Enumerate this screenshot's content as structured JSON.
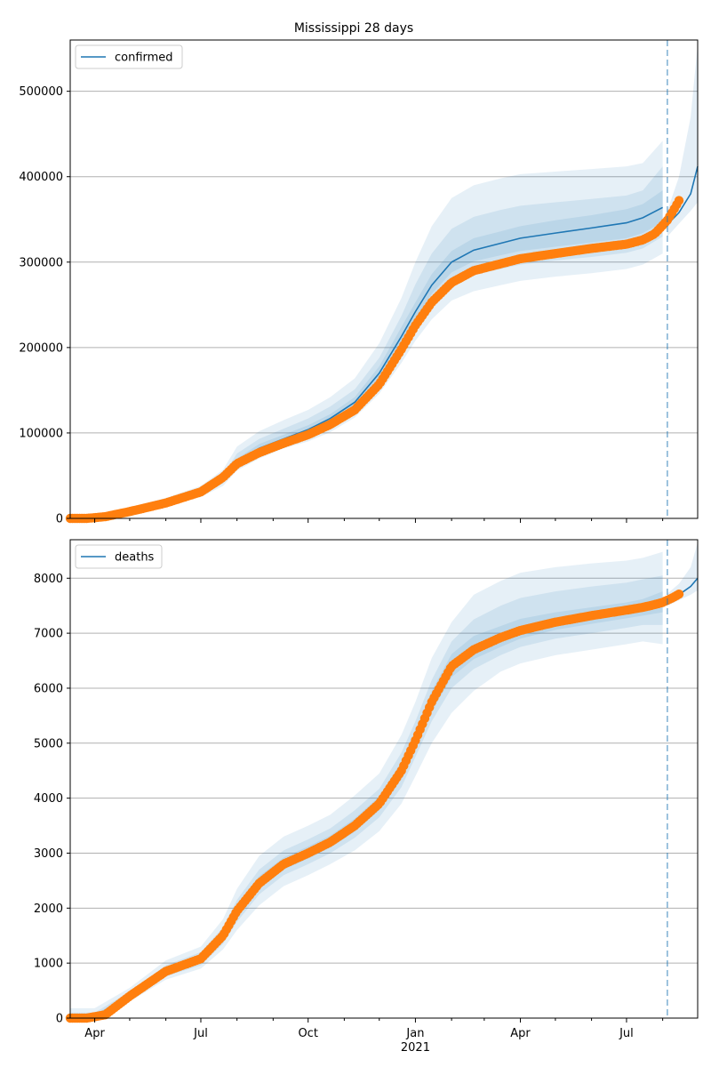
{
  "title": "Mississippi 28 days",
  "chart_data": [
    {
      "type": "line",
      "title": "Mississippi 28 days",
      "legend": {
        "entry": "confirmed",
        "placement": "top-left"
      },
      "xlabel": "",
      "ylabel": "",
      "grid": "y",
      "x_ticks": [
        "Apr",
        "Jul",
        "Oct",
        "Jan",
        "Apr",
        "Jul"
      ],
      "x_tick_year": "2021",
      "x_range": [
        "2020-03-11",
        "2021-08-31"
      ],
      "ylim": [
        0,
        560000
      ],
      "y_ticks": [
        "0",
        "100000",
        "200000",
        "300000",
        "400000",
        "500000"
      ],
      "y_tick_values": [
        0,
        100000,
        200000,
        300000,
        400000,
        500000
      ],
      "vline_date": "2021-08-05",
      "colors": {
        "line": "#1f77b4",
        "observed": "#ff7f0e",
        "band": "#1f77b4"
      },
      "model": {
        "name": "confirmed",
        "x": [
          "2020-03-11",
          "2020-04-01",
          "2020-05-01",
          "2020-06-01",
          "2020-07-01",
          "2020-07-20",
          "2020-08-01",
          "2020-08-20",
          "2020-09-10",
          "2020-10-01",
          "2020-10-20",
          "2020-11-10",
          "2020-12-01",
          "2020-12-20",
          "2021-01-01",
          "2021-01-15",
          "2021-02-01",
          "2021-02-20",
          "2021-03-15",
          "2021-04-01",
          "2021-05-01",
          "2021-06-01",
          "2021-07-01",
          "2021-07-15",
          "2021-08-01"
        ],
        "y": [
          0,
          2000,
          9000,
          18000,
          30000,
          45000,
          66000,
          82000,
          93000,
          104000,
          117000,
          136000,
          170000,
          213000,
          242000,
          273000,
          300000,
          314000,
          322000,
          328000,
          334000,
          340000,
          346000,
          352000,
          364000
        ]
      },
      "bands": [
        {
          "lower": [
            0,
            1000,
            6000,
            14000,
            25000,
            38000,
            56000,
            70000,
            82000,
            90000,
            101000,
            118000,
            146000,
            182000,
            208000,
            233000,
            255000,
            266000,
            273000,
            278000,
            283000,
            287000,
            292000,
            297000,
            310000
          ],
          "upper": [
            0,
            4000,
            13000,
            24000,
            38000,
            57000,
            84000,
            102000,
            115000,
            127000,
            142000,
            164000,
            205000,
            258000,
            300000,
            342000,
            375000,
            390000,
            398000,
            403000,
            406000,
            409000,
            412000,
            416000,
            442000
          ]
        },
        {
          "lower": [
            0,
            1500,
            7500,
            16000,
            28000,
            41000,
            60000,
            75000,
            86000,
            96000,
            108000,
            126000,
            156000,
            196000,
            224000,
            252000,
            274000,
            285000,
            292000,
            297000,
            302000,
            306000,
            311000,
            316000,
            330000
          ],
          "upper": [
            0,
            3000,
            11000,
            21000,
            34000,
            51000,
            76000,
            93000,
            105000,
            117000,
            131000,
            151000,
            188000,
            237000,
            274000,
            310000,
            339000,
            353000,
            361000,
            366000,
            370000,
            374000,
            378000,
            384000,
            412000
          ]
        },
        {
          "lower": [
            0,
            1800,
            8500,
            17000,
            29000,
            43000,
            63000,
            79000,
            90000,
            100000,
            113000,
            131000,
            164000,
            205000,
            233000,
            263000,
            288000,
            301000,
            308000,
            313000,
            318000,
            323000,
            328000,
            334000,
            347000
          ],
          "upper": [
            0,
            2500,
            10000,
            19500,
            32000,
            48000,
            70000,
            87000,
            98000,
            109000,
            122000,
            142000,
            178000,
            224000,
            253000,
            286000,
            313000,
            328000,
            336000,
            342000,
            349000,
            355000,
            362000,
            368000,
            384000
          ]
        }
      ],
      "forecast": {
        "x": [
          "2021-08-05",
          "2021-08-15",
          "2021-08-25",
          "2021-08-31"
        ],
        "y": [
          344000,
          358000,
          380000,
          412000
        ],
        "lower": [
          330000,
          345000,
          360000,
          370000
        ],
        "upper": [
          360000,
          400000,
          470000,
          555000
        ]
      },
      "observed": {
        "name": "observed",
        "x": [
          "2020-03-11",
          "2020-03-25",
          "2020-04-10",
          "2020-05-01",
          "2020-06-01",
          "2020-07-01",
          "2020-07-20",
          "2020-08-01",
          "2020-08-20",
          "2020-09-10",
          "2020-10-01",
          "2020-10-20",
          "2020-11-10",
          "2020-12-01",
          "2020-12-20",
          "2021-01-01",
          "2021-01-15",
          "2021-02-01",
          "2021-02-20",
          "2021-03-15",
          "2021-04-01",
          "2021-05-01",
          "2021-06-01",
          "2021-07-01",
          "2021-07-15",
          "2021-07-25",
          "2021-08-01",
          "2021-08-05",
          "2021-08-10",
          "2021-08-15"
        ],
        "y": [
          0,
          0,
          2000,
          8000,
          18000,
          31000,
          48000,
          64000,
          77000,
          88000,
          98000,
          110000,
          127000,
          157000,
          198000,
          226000,
          253000,
          276000,
          290000,
          298000,
          304000,
          310000,
          316000,
          321000,
          326000,
          333000,
          343000,
          349000,
          360000,
          372000
        ]
      }
    },
    {
      "type": "line",
      "title": "",
      "legend": {
        "entry": "deaths",
        "placement": "top-left"
      },
      "xlabel": "",
      "ylabel": "",
      "grid": "y",
      "x_ticks": [
        "Apr",
        "Jul",
        "Oct",
        "Jan",
        "Apr",
        "Jul"
      ],
      "x_tick_year": "2021",
      "x_range": [
        "2020-03-11",
        "2021-08-31"
      ],
      "ylim": [
        0,
        8700
      ],
      "y_ticks": [
        "0",
        "1000",
        "2000",
        "3000",
        "4000",
        "5000",
        "6000",
        "7000",
        "8000"
      ],
      "y_tick_values": [
        0,
        1000,
        2000,
        3000,
        4000,
        5000,
        6000,
        7000,
        8000
      ],
      "vline_date": "2021-08-05",
      "colors": {
        "line": "#1f77b4",
        "observed": "#ff7f0e",
        "band": "#1f77b4"
      },
      "model": {
        "name": "deaths",
        "x": [
          "2020-03-11",
          "2020-04-01",
          "2020-05-01",
          "2020-06-01",
          "2020-07-01",
          "2020-07-20",
          "2020-08-01",
          "2020-08-20",
          "2020-09-10",
          "2020-10-01",
          "2020-10-20",
          "2020-11-10",
          "2020-12-01",
          "2020-12-20",
          "2021-01-01",
          "2021-01-15",
          "2021-02-01",
          "2021-02-20",
          "2021-03-15",
          "2021-04-01",
          "2021-05-01",
          "2021-06-01",
          "2021-07-01",
          "2021-07-15",
          "2021-08-01"
        ],
        "y": [
          0,
          30,
          400,
          850,
          1080,
          1500,
          1950,
          2450,
          2800,
          3000,
          3200,
          3500,
          3900,
          4500,
          5050,
          5750,
          6400,
          6700,
          6900,
          7050,
          7200,
          7320,
          7420,
          7480,
          7580
        ]
      },
      "bands": [
        {
          "lower": [
            0,
            0,
            300,
            700,
            900,
            1250,
            1600,
            2050,
            2400,
            2600,
            2800,
            3050,
            3400,
            3900,
            4400,
            5000,
            5550,
            5950,
            6300,
            6450,
            6600,
            6700,
            6800,
            6850,
            6800
          ],
          "upper": [
            180,
            180,
            550,
            1050,
            1300,
            1800,
            2350,
            2950,
            3300,
            3500,
            3700,
            4050,
            4450,
            5150,
            5750,
            6550,
            7200,
            7700,
            7950,
            8100,
            8200,
            8270,
            8320,
            8370,
            8480
          ]
        },
        {
          "lower": [
            0,
            0,
            340,
            760,
            960,
            1350,
            1750,
            2250,
            2600,
            2800,
            3000,
            3280,
            3650,
            4200,
            4750,
            5400,
            6000,
            6350,
            6600,
            6750,
            6900,
            7000,
            7100,
            7150,
            7150
          ],
          "upper": [
            100,
            100,
            480,
            960,
            1200,
            1650,
            2150,
            2700,
            3050,
            3250,
            3450,
            3780,
            4170,
            4830,
            5400,
            6150,
            6850,
            7250,
            7500,
            7640,
            7760,
            7850,
            7920,
            7980,
            8050
          ]
        },
        {
          "lower": [
            0,
            10,
            370,
            810,
            1030,
            1430,
            1850,
            2350,
            2700,
            2900,
            3100,
            3390,
            3780,
            4350,
            4900,
            5580,
            6200,
            6530,
            6750,
            6900,
            7060,
            7170,
            7270,
            7320,
            7380
          ],
          "upper": [
            50,
            60,
            440,
            900,
            1130,
            1570,
            2050,
            2580,
            2920,
            3120,
            3320,
            3630,
            4030,
            4660,
            5220,
            5950,
            6620,
            6950,
            7130,
            7260,
            7380,
            7470,
            7560,
            7620,
            7760
          ]
        }
      ],
      "forecast": {
        "x": [
          "2021-08-05",
          "2021-08-15",
          "2021-08-25",
          "2021-08-31"
        ],
        "y": [
          7600,
          7700,
          7850,
          8000
        ],
        "lower": [
          7500,
          7600,
          7700,
          7780
        ],
        "upper": [
          7720,
          7900,
          8200,
          8650
        ]
      },
      "observed": {
        "name": "observed",
        "x": [
          "2020-03-11",
          "2020-03-25",
          "2020-04-10",
          "2020-05-01",
          "2020-06-01",
          "2020-07-01",
          "2020-07-20",
          "2020-08-01",
          "2020-08-20",
          "2020-09-10",
          "2020-10-01",
          "2020-10-20",
          "2020-11-10",
          "2020-12-01",
          "2020-12-20",
          "2021-01-01",
          "2021-01-15",
          "2021-02-01",
          "2021-02-20",
          "2021-03-15",
          "2021-04-01",
          "2021-05-01",
          "2021-06-01",
          "2021-07-01",
          "2021-07-15",
          "2021-07-25",
          "2021-08-01",
          "2021-08-05",
          "2021-08-10",
          "2021-08-15"
        ],
        "y": [
          0,
          0,
          60,
          400,
          850,
          1080,
          1500,
          1950,
          2450,
          2800,
          3000,
          3200,
          3500,
          3900,
          4500,
          5050,
          5750,
          6400,
          6700,
          6920,
          7050,
          7200,
          7320,
          7420,
          7470,
          7520,
          7560,
          7600,
          7650,
          7710
        ]
      }
    }
  ]
}
